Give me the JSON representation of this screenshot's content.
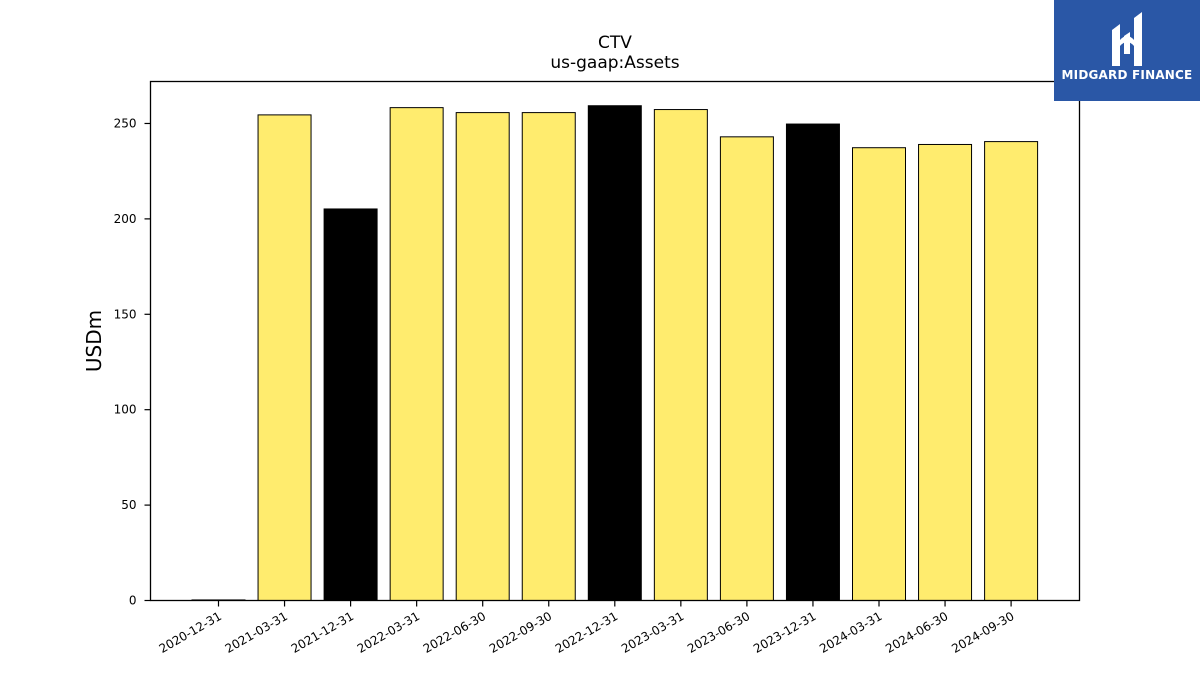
{
  "brand": {
    "name": "MIDGARD FINANCE",
    "color": "#2a57a6"
  },
  "chart_data": {
    "type": "bar",
    "title": "CTV",
    "subtitle": "us-gaap:Assets",
    "xlabel": "",
    "ylabel": "USDm",
    "ylim": [
      0,
      272
    ],
    "yticks": [
      0,
      50,
      100,
      150,
      200,
      250
    ],
    "categories": [
      "2020-12-31",
      "2021-03-31",
      "2021-12-31",
      "2022-03-31",
      "2022-06-30",
      "2022-09-30",
      "2022-12-31",
      "2023-03-31",
      "2023-06-30",
      "2023-12-31",
      "2024-03-31",
      "2024-06-30",
      "2024-09-30"
    ],
    "values": [
      0.3,
      254.5,
      205.2,
      258.3,
      255.7,
      255.7,
      259.3,
      257.3,
      243.0,
      249.7,
      237.3,
      239.0,
      240.5
    ],
    "bar_colors": [
      "#ffec6e",
      "#ffec6e",
      "#000000",
      "#ffec6e",
      "#ffec6e",
      "#ffec6e",
      "#000000",
      "#ffec6e",
      "#ffec6e",
      "#000000",
      "#ffec6e",
      "#ffec6e",
      "#ffec6e"
    ],
    "grid": false,
    "legend": "none"
  }
}
